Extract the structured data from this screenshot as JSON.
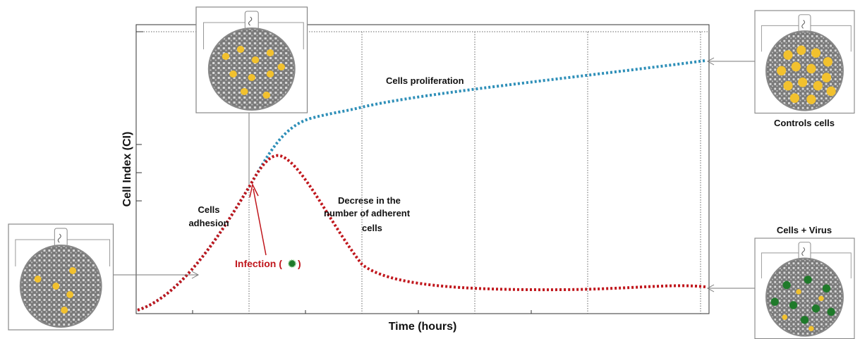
{
  "axes": {
    "y_label": "Cell Index (CI)",
    "x_label": "Time (hours)"
  },
  "annotations": {
    "proliferation": "Cells proliferation",
    "adhesion": [
      "Cells",
      "adhesion"
    ],
    "decrease": [
      "Decrese in the",
      "number of adherent",
      "cells"
    ],
    "infection_open": "Infection (",
    "infection_close": ")"
  },
  "wells": {
    "controls": "Controls cells",
    "virus": "Cells + Virus"
  }
}
